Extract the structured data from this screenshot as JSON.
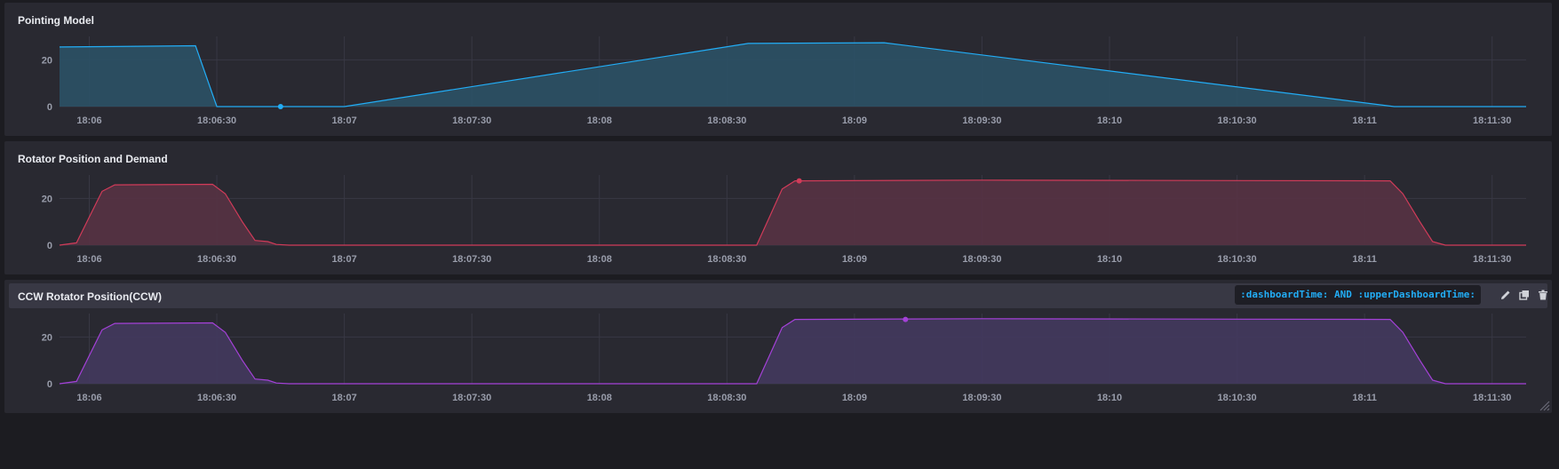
{
  "panels": [
    {
      "title": "Pointing Model",
      "hovered": false,
      "color": "#22ADF6",
      "fill": "#2b5166",
      "dot": {
        "x": "18:06:45",
        "y": 0
      },
      "chart_data": {
        "type": "area",
        "title": "Pointing Model",
        "x_ticks": [
          "18:06",
          "18:06:30",
          "18:07",
          "18:07:30",
          "18:08",
          "18:08:30",
          "18:09",
          "18:09:30",
          "18:10",
          "18:10:30",
          "18:11",
          "18:11:30"
        ],
        "y_ticks": [
          "0",
          "20"
        ],
        "ylim": [
          0,
          30
        ],
        "xlim": [
          "18:05:53",
          "18:11:38"
        ],
        "grid": true,
        "series": [
          {
            "x": [
              "18:05:53",
              "18:06:25",
              "18:06:30",
              "18:07",
              "18:08:35",
              "18:09:07",
              "18:11:07",
              "18:11:38"
            ],
            "values": [
              25.5,
              26,
              0,
              0,
              27,
              27.3,
              0,
              0
            ]
          }
        ]
      }
    },
    {
      "title": "Rotator Position and Demand",
      "hovered": false,
      "color": "#d13b59",
      "fill": "#563244",
      "dot": {
        "x": "18:08:47",
        "y": 27.5
      },
      "chart_data": {
        "type": "area",
        "title": "Rotator Position and Demand",
        "x_ticks": [
          "18:06",
          "18:06:30",
          "18:07",
          "18:07:30",
          "18:08",
          "18:08:30",
          "18:09",
          "18:09:30",
          "18:10",
          "18:10:30",
          "18:11",
          "18:11:30"
        ],
        "y_ticks": [
          "0",
          "20"
        ],
        "ylim": [
          0,
          30
        ],
        "xlim": [
          "18:05:53",
          "18:11:38"
        ],
        "grid": true,
        "series": [
          {
            "x": [
              "18:05:53",
              "18:05:57",
              "18:06:00",
              "18:06:03",
              "18:06:06",
              "18:06:29",
              "18:06:32",
              "18:06:36",
              "18:06:39",
              "18:06:42",
              "18:06:44",
              "18:06:47",
              "18:08:37",
              "18:08:40",
              "18:08:43",
              "18:08:46",
              "18:09:30",
              "18:11:06",
              "18:11:09",
              "18:11:13",
              "18:11:16",
              "18:11:19",
              "18:11:38"
            ],
            "values": [
              0,
              1,
              12,
              23,
              25.8,
              26,
              22,
              10,
              2,
              1.5,
              0.3,
              0,
              0,
              12,
              24,
              27.5,
              27.8,
              27.5,
              22,
              10,
              1.5,
              0,
              0
            ]
          }
        ]
      }
    },
    {
      "title": "CCW Rotator Position(CCW)",
      "hovered": true,
      "query": ":dashboardTime: AND :upperDashboardTime:",
      "color": "#a441d8",
      "fill": "#42395e",
      "dot": {
        "x": "18:09:12",
        "y": 27.5
      },
      "chart_data": {
        "type": "area",
        "title": "CCW Rotator Position(CCW)",
        "x_ticks": [
          "18:06",
          "18:06:30",
          "18:07",
          "18:07:30",
          "18:08",
          "18:08:30",
          "18:09",
          "18:09:30",
          "18:10",
          "18:10:30",
          "18:11",
          "18:11:30"
        ],
        "y_ticks": [
          "0",
          "20"
        ],
        "ylim": [
          0,
          30
        ],
        "xlim": [
          "18:05:53",
          "18:11:38"
        ],
        "grid": true,
        "series": [
          {
            "x": [
              "18:05:53",
              "18:05:57",
              "18:06:00",
              "18:06:03",
              "18:06:06",
              "18:06:29",
              "18:06:32",
              "18:06:36",
              "18:06:39",
              "18:06:42",
              "18:06:44",
              "18:06:47",
              "18:08:37",
              "18:08:40",
              "18:08:43",
              "18:08:46",
              "18:09:30",
              "18:11:06",
              "18:11:09",
              "18:11:13",
              "18:11:16",
              "18:11:19",
              "18:11:38"
            ],
            "values": [
              0,
              1,
              12,
              23,
              25.8,
              26,
              22,
              10,
              2,
              1.5,
              0.3,
              0,
              0,
              12,
              24,
              27.5,
              27.8,
              27.5,
              22,
              10,
              1.5,
              0,
              0
            ]
          }
        ]
      }
    }
  ],
  "icons": {
    "edit": "pencil-icon",
    "duplicate": "duplicate-icon",
    "delete": "trash-icon",
    "resize": "resize-handle-icon"
  }
}
